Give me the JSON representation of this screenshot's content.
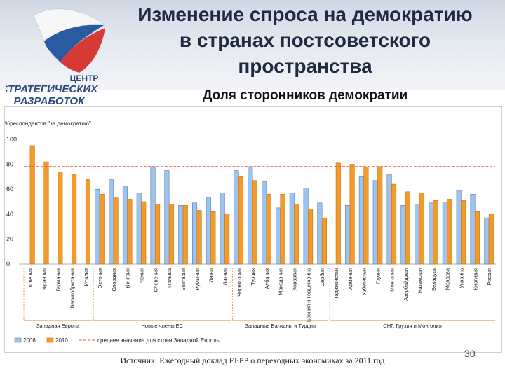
{
  "header": {
    "title_lines": [
      "Изменение спроса на демократию",
      "в странах постсоветского",
      "пространства"
    ],
    "subtitle": "Доля сторонников демократии"
  },
  "logo": {
    "line1": "ЦЕНТР",
    "line2": "СТРАТЕГИЧЕСКИХ",
    "line3": "РАЗРАБОТОК"
  },
  "chart_data": {
    "type": "bar",
    "ylabel": "%респондентов \"за демократию\"",
    "ylim": [
      0,
      100
    ],
    "yticks": [
      0,
      20,
      40,
      60,
      80,
      100
    ],
    "categories": [
      "Швеция",
      "Франция",
      "Германия",
      "Великобритания",
      "Италия",
      "Эстония",
      "Словакия",
      "Венгрия",
      "Чехия",
      "Словения",
      "Польша",
      "Болгария",
      "Румыния",
      "Литва",
      "Латвия",
      "Черногория",
      "Турция",
      "Албания",
      "Македония",
      "Хорватия",
      "Босния и Герцеговина",
      "Сербия",
      "Таджикистан",
      "Армения",
      "Узбекистан",
      "Грузия",
      "Монголия",
      "Азербайджан",
      "Казахстан",
      "Беларусь",
      "Молдова",
      "Украина",
      "Киргизия",
      "Россия"
    ],
    "series": [
      {
        "name": "2006",
        "color": "#9ec3ec",
        "values": [
          null,
          null,
          null,
          null,
          null,
          60,
          68,
          62,
          57,
          78,
          75,
          47,
          49,
          53,
          57,
          75,
          78,
          66,
          45,
          57,
          61,
          49,
          null,
          47,
          70,
          67,
          72,
          47,
          48,
          49,
          49,
          59,
          56,
          37
        ]
      },
      {
        "name": "2010",
        "color": "#f39a2a",
        "values": [
          95,
          82,
          74,
          72,
          68,
          56,
          53,
          52,
          50,
          48,
          48,
          47,
          43,
          42,
          40,
          70,
          67,
          56,
          56,
          48,
          44,
          37,
          81,
          80,
          78,
          78,
          64,
          58,
          57,
          51,
          52,
          51,
          42,
          40
        ]
      }
    ],
    "reference_line": {
      "label": "среднее значение для стран Западной Европы",
      "color": "#e8554e"
    },
    "groups": [
      {
        "label": "Западная Европа",
        "from": 0,
        "to": 4
      },
      {
        "label": "Новые члены ЕС",
        "from": 5,
        "to": 14
      },
      {
        "label": "Западные Балканы и Турция",
        "from": 15,
        "to": 21
      },
      {
        "label": "СНГ, Грузия и Монголия",
        "from": 22,
        "to": 33
      }
    ],
    "legend_position": "bottom-left",
    "grid": false
  },
  "footer": {
    "source": "Источник: Ежегодный доклад ЕБРР о переходных экономиках за 2011 год",
    "page": "30"
  }
}
